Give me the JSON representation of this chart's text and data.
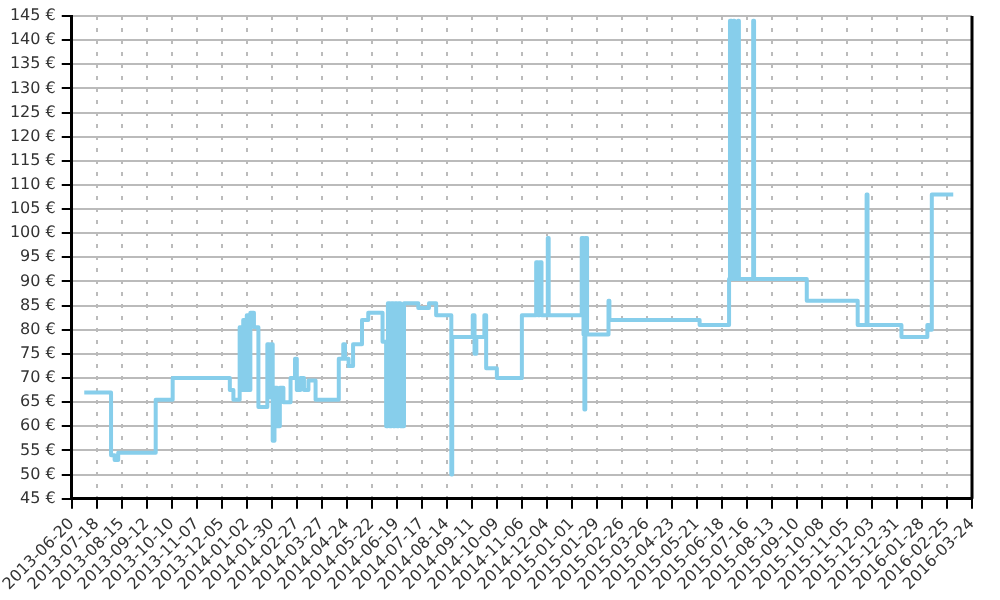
{
  "chart_data": {
    "type": "step",
    "x": [
      "2013-07-04",
      "2013-08-03",
      "2013-08-07",
      "2013-08-11",
      "2013-09-22",
      "2013-10-11",
      "2013-12-14",
      "2013-12-18",
      "2013-12-25",
      "2013-12-27",
      "2013-12-29",
      "2013-12-31",
      "2014-01-02",
      "2014-01-04",
      "2014-01-06",
      "2014-01-10",
      "2014-01-15",
      "2014-01-25",
      "2014-01-27",
      "2014-01-29",
      "2014-01-31",
      "2014-02-02",
      "2014-02-05",
      "2014-02-08",
      "2014-02-12",
      "2014-02-20",
      "2014-02-25",
      "2014-02-27",
      "2014-03-03",
      "2014-03-07",
      "2014-03-12",
      "2014-03-20",
      "2014-04-15",
      "2014-04-20",
      "2014-04-22",
      "2014-04-26",
      "2014-05-01",
      "2014-05-11",
      "2014-05-18",
      "2014-06-03",
      "2014-06-07",
      "2014-06-09",
      "2014-06-11",
      "2014-06-13",
      "2014-06-15",
      "2014-06-17",
      "2014-06-19",
      "2014-06-21",
      "2014-06-23",
      "2014-06-27",
      "2014-07-13",
      "2014-07-25",
      "2014-08-02",
      "2014-08-19",
      "2014-08-20",
      "2014-09-12",
      "2014-09-14",
      "2014-09-16",
      "2014-09-25",
      "2014-09-27",
      "2014-10-09",
      "2014-11-06",
      "2014-11-22",
      "2014-11-24",
      "2014-11-26",
      "2014-11-28",
      "2014-12-05",
      "2014-12-06",
      "2015-01-12",
      "2015-01-14",
      "2015-01-15",
      "2015-01-16",
      "2015-01-18",
      "2015-02-11",
      "2015-02-12",
      "2015-05-24",
      "2015-06-26",
      "2015-06-27",
      "2015-06-29",
      "2015-07-01",
      "2015-07-02",
      "2015-07-06",
      "2015-07-07",
      "2015-07-23",
      "2015-07-24",
      "2015-09-21",
      "2015-11-17",
      "2015-11-27",
      "2015-11-28",
      "2016-01-05",
      "2016-02-03",
      "2016-02-05",
      "2016-02-08",
      "2016-03-03"
    ],
    "values": [
      67,
      54,
      53,
      54.5,
      65.5,
      70,
      67.5,
      65.5,
      80.5,
      67.5,
      82,
      67.5,
      83,
      67.5,
      83.5,
      80.5,
      64,
      77,
      66,
      77,
      57,
      68,
      60,
      68,
      65,
      70,
      74,
      67.5,
      70,
      67.5,
      69.5,
      65.5,
      74,
      77,
      74,
      72.5,
      77,
      82,
      83.5,
      77.5,
      60,
      85.5,
      60,
      85.5,
      60,
      85.5,
      60,
      85.5,
      60,
      85.5,
      84.5,
      85.5,
      83,
      50,
      78.5,
      83,
      75,
      78.5,
      83,
      72,
      70,
      83,
      94,
      83,
      94,
      83,
      99,
      83,
      99,
      79,
      63.5,
      99,
      79,
      86,
      82,
      81,
      90.5,
      144,
      90.5,
      144,
      90.5,
      144,
      90.5,
      144,
      90.5,
      86,
      81,
      108,
      81,
      78.5,
      81,
      80,
      108,
      108
    ],
    "color": "#87ceeb",
    "marker": "none",
    "legend": false,
    "grid": true,
    "xlim": [
      "2013-06-20",
      "2016-03-24"
    ],
    "xticks": [
      "2013-06-20",
      "2013-07-18",
      "2013-08-15",
      "2013-09-12",
      "2013-10-10",
      "2013-11-07",
      "2013-12-05",
      "2014-01-02",
      "2014-01-30",
      "2014-02-27",
      "2014-03-27",
      "2014-04-24",
      "2014-05-22",
      "2014-06-19",
      "2014-07-17",
      "2014-08-14",
      "2014-09-11",
      "2014-10-09",
      "2014-11-06",
      "2014-12-04",
      "2015-01-01",
      "2015-01-29",
      "2015-02-26",
      "2015-03-26",
      "2015-04-23",
      "2015-05-21",
      "2015-06-18",
      "2015-07-16",
      "2015-08-13",
      "2015-09-10",
      "2015-10-08",
      "2015-11-05",
      "2015-12-03",
      "2015-12-31",
      "2016-01-28",
      "2016-02-25",
      "2016-03-24"
    ],
    "ylim": [
      45,
      145
    ],
    "yticks": [
      {
        "value": 45,
        "label": "45 €"
      },
      {
        "value": 50,
        "label": "50 €"
      },
      {
        "value": 55,
        "label": "55 €"
      },
      {
        "value": 60,
        "label": "60 €"
      },
      {
        "value": 65,
        "label": "65 €"
      },
      {
        "value": 70,
        "label": "70 €"
      },
      {
        "value": 75,
        "label": "75 €"
      },
      {
        "value": 80,
        "label": "80 €"
      },
      {
        "value": 85,
        "label": "85 €"
      },
      {
        "value": 90,
        "label": "90 €"
      },
      {
        "value": 95,
        "label": "95 €"
      },
      {
        "value": 100,
        "label": "100 €"
      },
      {
        "value": 105,
        "label": "105 €"
      },
      {
        "value": 110,
        "label": "110 €"
      },
      {
        "value": 115,
        "label": "115 €"
      },
      {
        "value": 120,
        "label": "120 €"
      },
      {
        "value": 125,
        "label": "125 €"
      },
      {
        "value": 130,
        "label": "130 €"
      },
      {
        "value": 135,
        "label": "135 €"
      },
      {
        "value": 140,
        "label": "140 €"
      },
      {
        "value": 145,
        "label": "145 €"
      }
    ]
  }
}
